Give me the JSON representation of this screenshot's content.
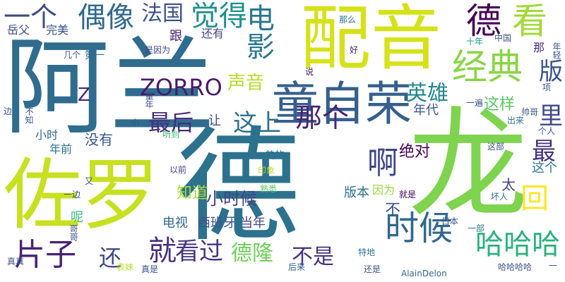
{
  "cloud": {
    "words": [
      {
        "text": "阿兰",
        "color": "#2f6c8e",
        "vertical": false
      },
      {
        "text": "龙",
        "color": "#7ed34f",
        "vertical": false
      },
      {
        "text": "配音",
        "color": "#d5e21a",
        "vertical": false
      },
      {
        "text": "佐罗",
        "color": "#c7e020",
        "vertical": false
      },
      {
        "text": "德",
        "color": "#2c728e",
        "vertical": false
      },
      {
        "text": "童自荣",
        "color": "#355f8d",
        "vertical": false
      },
      {
        "text": "经典",
        "color": "#8ad546",
        "vertical": false
      },
      {
        "text": "时候",
        "color": "#31688e",
        "vertical": false
      },
      {
        "text": "哈哈哈",
        "color": "#2cb17e",
        "vertical": false
      },
      {
        "text": "片子",
        "color": "#482374",
        "vertical": false
      },
      {
        "text": "看",
        "color": "#a2da37",
        "vertical": false
      },
      {
        "text": "最",
        "color": "#46337e",
        "vertical": false
      },
      {
        "text": "偶像",
        "color": "#31688e",
        "vertical": false
      },
      {
        "text": "德",
        "color": "#440154",
        "vertical": false
      },
      {
        "text": "电影",
        "color": "#2a788e",
        "vertical": true
      },
      {
        "text": "觉得",
        "color": "#21908d",
        "vertical": false
      },
      {
        "text": "法国",
        "color": "#3b528b",
        "vertical": false
      },
      {
        "text": "一个",
        "color": "#3e4a89",
        "vertical": false
      },
      {
        "text": "版",
        "color": "#3b528b",
        "vertical": false
      },
      {
        "text": "里",
        "color": "#3e4a89",
        "vertical": false
      },
      {
        "text": "ZORRO",
        "color": "#481a6c",
        "vertical": false
      },
      {
        "text": "Z",
        "color": "#482878",
        "vertical": false
      },
      {
        "text": "英雄",
        "color": "#23888e",
        "vertical": false
      },
      {
        "text": "声音",
        "color": "#b5de2b",
        "vertical": false
      },
      {
        "text": "最后",
        "color": "#472d7b",
        "vertical": false
      },
      {
        "text": "这上",
        "color": "#2e6f8e",
        "vertical": false
      },
      {
        "text": "那个",
        "color": "#482475",
        "vertical": false
      },
      {
        "text": "啊",
        "color": "#3f4788",
        "vertical": false
      },
      {
        "text": "就",
        "color": "#472f7d",
        "vertical": false
      },
      {
        "text": "看过",
        "color": "#46337e",
        "vertical": false
      },
      {
        "text": "德隆",
        "color": "#6ece58",
        "vertical": false
      },
      {
        "text": "不是",
        "color": "#46327e",
        "vertical": false
      },
      {
        "text": "还",
        "color": "#3e4a89",
        "vertical": false
      },
      {
        "text": "没有",
        "color": "#38588c",
        "vertical": false
      },
      {
        "text": "这样",
        "color": "#58c765",
        "vertical": false
      },
      {
        "text": "年代",
        "color": "#3a548c",
        "vertical": false
      },
      {
        "text": "版本",
        "color": "#2d708e",
        "vertical": false
      },
      {
        "text": "绝对",
        "color": "#440154",
        "vertical": false
      },
      {
        "text": "小时候",
        "color": "#404387",
        "vertical": false
      },
      {
        "text": "知道",
        "color": "#a8db34",
        "vertical": false
      },
      {
        "text": "电视",
        "color": "#31688e",
        "vertical": false
      },
      {
        "text": "西班牙",
        "color": "#3b528b",
        "vertical": false
      },
      {
        "text": "当年",
        "color": "#3f4788",
        "vertical": false
      },
      {
        "text": "因为",
        "color": "#9dd93b",
        "vertical": false
      },
      {
        "text": "太",
        "color": "#404688",
        "vertical": false
      },
      {
        "text": "回",
        "color": "#fde725",
        "vertical": false
      },
      {
        "text": "这个",
        "color": "#2a788e",
        "vertical": false
      },
      {
        "text": "还有",
        "color": "#3f4889",
        "vertical": false
      },
      {
        "text": "完美",
        "color": "#3a538b",
        "vertical": false
      },
      {
        "text": "岳父",
        "color": "#3e4a89",
        "vertical": false
      },
      {
        "text": "第一",
        "color": "#2f6b8e",
        "vertical": false
      },
      {
        "text": "跟",
        "color": "#482173",
        "vertical": false
      },
      {
        "text": "那么",
        "color": "#2b748e",
        "vertical": false
      },
      {
        "text": "中国",
        "color": "#3b528b",
        "vertical": false
      },
      {
        "text": "十年",
        "color": "#1fa188",
        "vertical": false
      },
      {
        "text": "几个",
        "color": "#3b528b",
        "vertical": false
      },
      {
        "text": "是因为",
        "color": "#3e4989",
        "vertical": false
      },
      {
        "text": "好",
        "color": "#482677",
        "vertical": false
      },
      {
        "text": "那",
        "color": "#472e7c",
        "vertical": false
      },
      {
        "text": "说",
        "color": "#48196b",
        "vertical": false
      },
      {
        "text": "让",
        "color": "#3e4a89",
        "vertical": false
      },
      {
        "text": "美的",
        "color": "#2a768e",
        "vertical": false
      },
      {
        "text": "小时",
        "color": "#31688e",
        "vertical": false
      },
      {
        "text": "年前",
        "color": "#2c718e",
        "vertical": false
      },
      {
        "text": "听到",
        "color": "#35b779",
        "vertical": false
      },
      {
        "text": "出来",
        "color": "#2c728e",
        "vertical": false
      },
      {
        "text": "一遍",
        "color": "#3b528b",
        "vertical": false
      },
      {
        "text": "这部",
        "color": "#3b528b",
        "vertical": false
      },
      {
        "text": "以前",
        "color": "#3f4788",
        "vertical": false
      },
      {
        "text": "印象",
        "color": "#b8de29",
        "vertical": false
      },
      {
        "text": "就是",
        "color": "#440154",
        "vertical": false
      },
      {
        "text": "一边",
        "color": "#3b528b",
        "vertical": false
      },
      {
        "text": "呢",
        "color": "#35b779",
        "vertical": false
      },
      {
        "text": "熟悉",
        "color": "#5dc962",
        "vertical": false
      },
      {
        "text": "坏人",
        "color": "#2c728e",
        "vertical": false
      },
      {
        "text": "个人",
        "color": "#3b528b",
        "vertical": false
      },
      {
        "text": "日本",
        "color": "#3b528b",
        "vertical": false
      },
      {
        "text": "一部",
        "color": "#2a788e",
        "vertical": false
      },
      {
        "text": "真真",
        "color": "#3b528b",
        "vertical": false
      },
      {
        "text": "表妹",
        "color": "#b5de2b",
        "vertical": false
      },
      {
        "text": "真是",
        "color": "#3b528b",
        "vertical": false
      },
      {
        "text": "后来",
        "color": "#35608d",
        "vertical": false
      },
      {
        "text": "特地",
        "color": "#2a788e",
        "vertical": false
      },
      {
        "text": "还是",
        "color": "#3b528b",
        "vertical": false
      },
      {
        "text": "AlainDelon",
        "color": "#31688e",
        "vertical": false
      },
      {
        "text": "哈哈哈哈",
        "color": "#3b528b",
        "vertical": false
      },
      {
        "text": "一",
        "color": "#3b528b",
        "vertical": false
      },
      {
        "text": "边",
        "color": "#3b528b",
        "vertical": false
      },
      {
        "text": "不知",
        "color": "#3b528b",
        "vertical": true
      },
      {
        "text": "又",
        "color": "#3b528b",
        "vertical": false
      },
      {
        "text": "小",
        "color": "#3b528b",
        "vertical": false
      },
      {
        "text": "帅哥",
        "color": "#3b528b",
        "vertical": false
      },
      {
        "text": "项",
        "color": "#3b528b",
        "vertical": false
      },
      {
        "text": "童年",
        "color": "#3b528b",
        "vertical": true
      },
      {
        "text": "哥哥",
        "color": "#3b528b",
        "vertical": true
      },
      {
        "text": "年轻",
        "color": "#3b528b",
        "vertical": true
      },
      {
        "text": "不",
        "color": "#3b528b",
        "vertical": false
      }
    ]
  }
}
